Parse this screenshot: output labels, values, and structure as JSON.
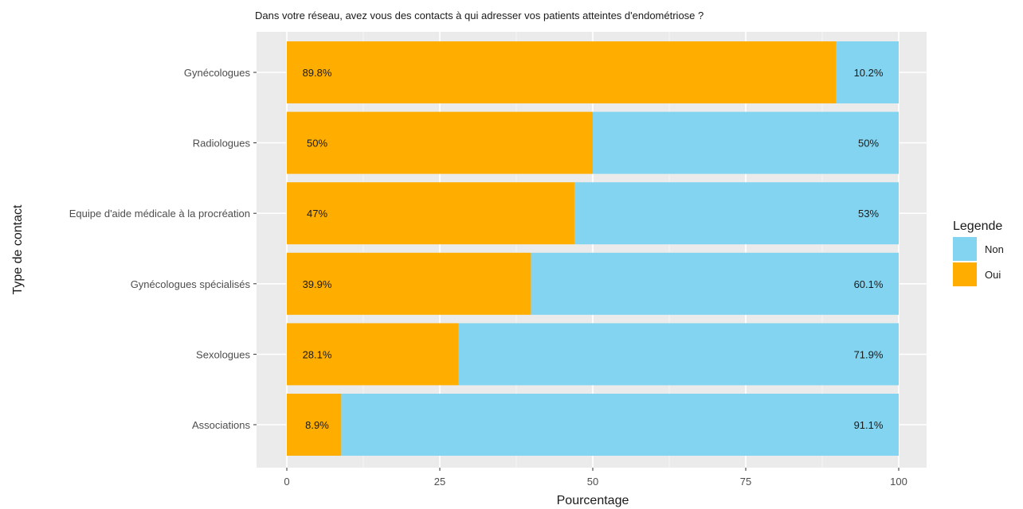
{
  "chart_data": {
    "type": "bar",
    "orientation": "horizontal",
    "stacked": true,
    "title": "Dans votre réseau, avez vous des contacts à qui adresser vos patients atteintes d'endométriose ?",
    "xlabel": "Pourcentage",
    "ylabel": "Type de contact",
    "xlim": [
      0,
      100
    ],
    "xticks": [
      0,
      25,
      50,
      75,
      100
    ],
    "categories": [
      "Gynécologues",
      "Radiologues",
      "Equipe d'aide médicale à la procréation",
      "Gynécologues spécialisés",
      "Sexologues",
      "Associations"
    ],
    "series": [
      {
        "name": "Oui",
        "color": "#FFAE00",
        "values": [
          89.8,
          50,
          47,
          39.9,
          28.1,
          8.9
        ],
        "labels": [
          "89.8%",
          "50%",
          "47%",
          "39.9%",
          "28.1%",
          "8.9%"
        ]
      },
      {
        "name": "Non",
        "color": "#82D4F0",
        "values": [
          10.2,
          50,
          53,
          60.1,
          71.9,
          91.1
        ],
        "labels": [
          "10.2%",
          "50%",
          "53%",
          "60.1%",
          "71.9%",
          "91.1%"
        ]
      }
    ],
    "legend": {
      "title": "Legende",
      "position": "right",
      "entries": [
        {
          "name": "Non",
          "color": "#82D4F0"
        },
        {
          "name": "Oui",
          "color": "#FFAE00"
        }
      ]
    },
    "grid": true,
    "panel_background": "#EBEBEB"
  }
}
